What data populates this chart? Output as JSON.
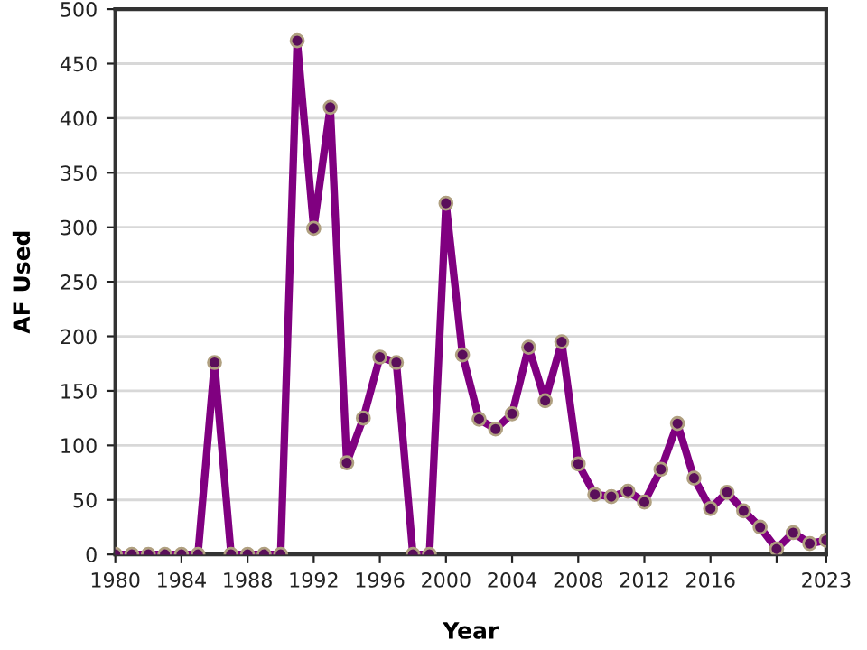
{
  "chart_data": {
    "type": "line",
    "xlabel": "Year",
    "ylabel": "AF Used",
    "x": [
      1980,
      1981,
      1982,
      1983,
      1984,
      1985,
      1986,
      1987,
      1988,
      1989,
      1990,
      1991,
      1992,
      1993,
      1994,
      1995,
      1996,
      1997,
      1998,
      1999,
      2000,
      2001,
      2002,
      2003,
      2004,
      2005,
      2006,
      2007,
      2008,
      2009,
      2010,
      2011,
      2012,
      2013,
      2014,
      2015,
      2016,
      2017,
      2018,
      2019,
      2020,
      2021,
      2022,
      2023
    ],
    "series": [
      {
        "color": "#800080",
        "values": [
          0,
          0,
          0,
          0,
          0,
          0,
          176,
          0,
          0,
          0,
          0,
          471,
          299,
          410,
          84,
          125,
          181,
          176,
          0,
          0,
          322,
          183,
          124,
          115,
          129,
          190,
          141,
          195,
          83,
          55,
          53,
          58,
          48,
          78,
          120,
          70,
          42,
          57,
          40,
          25,
          5,
          20,
          10,
          13
        ]
      }
    ],
    "xlim": [
      1980,
      2023
    ],
    "xticks": [
      1980,
      1984,
      1988,
      1992,
      1996,
      2000,
      2004,
      2008,
      2012,
      2016,
      {
        "value": 2020,
        "label": null
      },
      2023
    ],
    "ylim": [
      0,
      500
    ],
    "yticks": [
      0,
      50,
      100,
      150,
      200,
      250,
      300,
      350,
      400,
      450,
      500
    ],
    "grid": "y",
    "marker": "circle",
    "line_style": "solid"
  }
}
